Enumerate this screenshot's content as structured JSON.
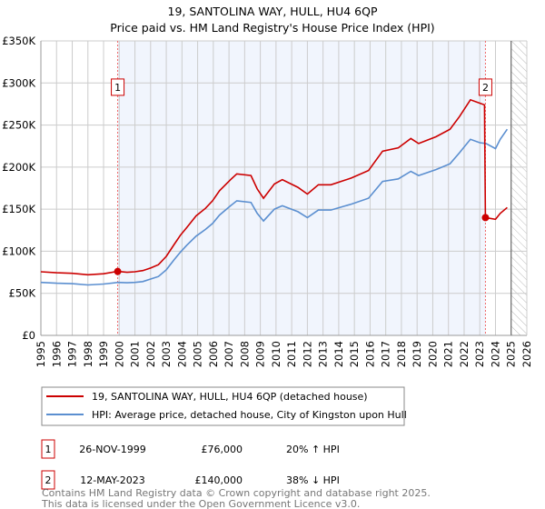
{
  "chart_data": {
    "type": "line",
    "title": "19, SANTOLINA WAY, HULL, HU4 6QP",
    "subtitle": "Price paid vs. HM Land Registry's House Price Index (HPI)",
    "xlim": [
      1995,
      2026
    ],
    "ylim": [
      0,
      350000
    ],
    "x_ticks": [
      "1995",
      "1996",
      "1997",
      "1998",
      "1999",
      "2000",
      "2001",
      "2002",
      "2003",
      "2004",
      "2005",
      "2006",
      "2007",
      "2008",
      "2009",
      "2010",
      "2011",
      "2012",
      "2013",
      "2014",
      "2015",
      "2016",
      "2017",
      "2018",
      "2019",
      "2020",
      "2021",
      "2022",
      "2023",
      "2024",
      "2025",
      "2026"
    ],
    "y_ticks": [
      {
        "v": 0,
        "label": "£0"
      },
      {
        "v": 50000,
        "label": "£50K"
      },
      {
        "v": 100000,
        "label": "£100K"
      },
      {
        "v": 150000,
        "label": "£150K"
      },
      {
        "v": 200000,
        "label": "£200K"
      },
      {
        "v": 250000,
        "label": "£250K"
      },
      {
        "v": 300000,
        "label": "£300K"
      },
      {
        "v": 350000,
        "label": "£350K"
      }
    ],
    "grid": true,
    "forecast_hatch_from": 2025,
    "series": [
      {
        "name": "19, SANTOLINA WAY, HULL, HU4 6QP (detached house)",
        "color": "#cc0000",
        "x": [
          1995,
          1996,
          1997,
          1998,
          1999,
          1999.9,
          2000.5,
          2001,
          2001.5,
          2002,
          2002.5,
          2003,
          2003.5,
          2003.9,
          2004.3,
          2004.9,
          2005.5,
          2005.95,
          2006.4,
          2007.1,
          2007.5,
          2008.4,
          2008.8,
          2009.2,
          2009.9,
          2010.4,
          2011.4,
          2012.0,
          2012.7,
          2013.5,
          2014.8,
          2015.9,
          2016.8,
          2017.8,
          2018.6,
          2019.1,
          2020.2,
          2021.1,
          2021.7,
          2022.4,
          2023.0,
          2023.3,
          2023.36,
          2024.0,
          2024.3,
          2024.75
        ],
        "y": [
          75600,
          74400,
          73800,
          72000,
          73200,
          76000,
          75000,
          75600,
          77000,
          80000,
          84000,
          94000,
          108000,
          119000,
          128000,
          142000,
          151000,
          160000,
          172000,
          185000,
          192000,
          190000,
          174000,
          163000,
          180000,
          185000,
          176000,
          168000,
          179000,
          179000,
          187000,
          196000,
          219000,
          223000,
          234000,
          228000,
          236000,
          245000,
          260000,
          280000,
          276000,
          274000,
          140000,
          138000,
          145000,
          152000
        ]
      },
      {
        "name": "HPI: Average price, detached house, City of Kingston upon Hull",
        "color": "#5b8fd0",
        "x": [
          1995,
          1996,
          1997,
          1998,
          1999,
          1999.9,
          2000.5,
          2001,
          2001.5,
          2002,
          2002.5,
          2003,
          2003.5,
          2003.9,
          2004.3,
          2004.9,
          2005.5,
          2005.95,
          2006.4,
          2007.1,
          2007.5,
          2008.4,
          2008.8,
          2009.2,
          2009.9,
          2010.4,
          2011.4,
          2012.0,
          2012.7,
          2013.5,
          2014.8,
          2015.9,
          2016.8,
          2017.8,
          2018.6,
          2019.1,
          2020.2,
          2021.1,
          2021.7,
          2022.4,
          2023.0,
          2023.4,
          2024.0,
          2024.3,
          2024.75
        ],
        "y": [
          63000,
          62000,
          61500,
          60000,
          61000,
          63000,
          62500,
          63000,
          64000,
          67000,
          70000,
          78000,
          90000,
          99000,
          107000,
          118000,
          126000,
          133000,
          143000,
          154000,
          160000,
          158000,
          145000,
          136000,
          150000,
          154000,
          147000,
          140000,
          149000,
          149000,
          156000,
          163000,
          183000,
          186000,
          195000,
          190000,
          197000,
          204000,
          217000,
          233000,
          229000,
          228000,
          222000,
          233000,
          245000
        ]
      }
    ],
    "sales": [
      {
        "id": "1",
        "x": 1999.9,
        "y": 76000,
        "date": "26-NOV-1999",
        "price": "£76,000",
        "hpi": "20% ↑ HPI"
      },
      {
        "id": "2",
        "x": 2023.36,
        "y": 140000,
        "date": "12-MAY-2023",
        "price": "£140,000",
        "hpi": "38% ↓ HPI"
      }
    ],
    "legend_position": "bottom"
  },
  "footer": {
    "line1": "Contains HM Land Registry data © Crown copyright and database right 2025.",
    "line2": "This data is licensed under the Open Government Licence v3.0."
  }
}
